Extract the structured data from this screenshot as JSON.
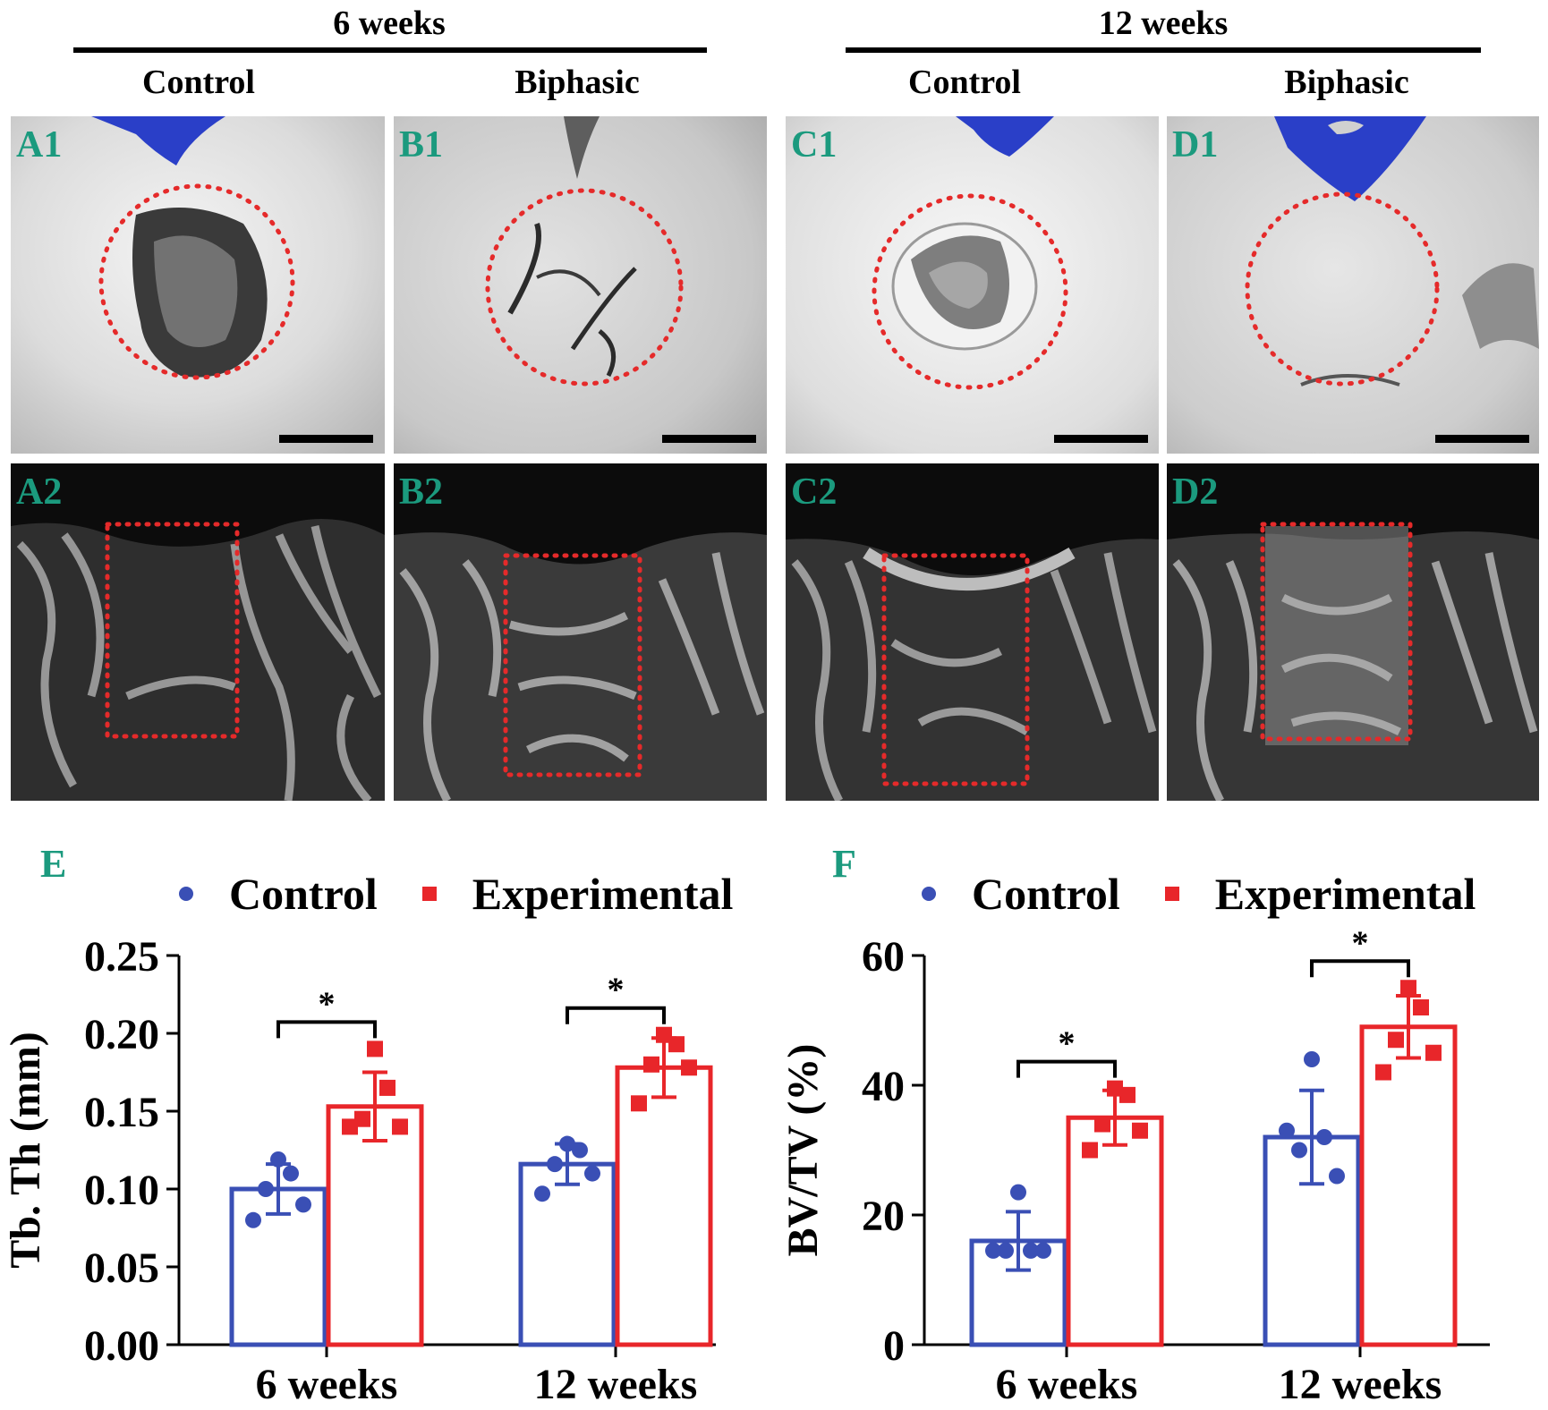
{
  "headers": {
    "group_6w": "6 weeks",
    "group_12w": "12 weeks",
    "col_a": "Control",
    "col_b": "Biphasic",
    "col_c": "Control",
    "col_d": "Biphasic"
  },
  "panel_labels": {
    "a1": "A1",
    "b1": "B1",
    "c1": "C1",
    "d1": "D1",
    "a2": "A2",
    "b2": "B2",
    "c2": "C2",
    "d2": "D2"
  },
  "colors": {
    "control": "#3a4fb5",
    "experimental": "#e8262a",
    "label_green": "#1b9a7e",
    "blue_region": "#2a3fc8"
  },
  "chart_data": [
    {
      "panel": "E",
      "type": "bar",
      "ylabel": "Tb. Th (mm)",
      "ylim": [
        0,
        0.25
      ],
      "yticks": [
        "0.00",
        "0.05",
        "0.10",
        "0.15",
        "0.20",
        "0.25"
      ],
      "categories": [
        "6 weeks",
        "12 weeks"
      ],
      "legend": [
        "Control",
        "Experimental"
      ],
      "series": [
        {
          "name": "Control",
          "values": [
            0.1,
            0.116
          ],
          "sd": [
            0.016,
            0.013
          ],
          "points": [
            [
              0.119,
              0.11,
              0.1,
              0.09,
              0.08
            ],
            [
              0.129,
              0.125,
              0.116,
              0.11,
              0.097
            ]
          ]
        },
        {
          "name": "Experimental",
          "values": [
            0.153,
            0.178
          ],
          "sd": [
            0.022,
            0.019
          ],
          "points": [
            [
              0.19,
              0.165,
              0.145,
              0.14,
              0.14
            ],
            [
              0.199,
              0.193,
              0.18,
              0.178,
              0.155
            ]
          ]
        }
      ],
      "significance": [
        {
          "category": "6 weeks",
          "label": "*"
        },
        {
          "category": "12 weeks",
          "label": "*"
        }
      ]
    },
    {
      "panel": "F",
      "type": "bar",
      "ylabel": "BV/TV (%)",
      "ylim": [
        0,
        60
      ],
      "yticks": [
        "0",
        "20",
        "40",
        "60"
      ],
      "categories": [
        "6 weeks",
        "12 weeks"
      ],
      "legend": [
        "Control",
        "Experimental"
      ],
      "series": [
        {
          "name": "Control",
          "values": [
            16,
            32
          ],
          "sd": [
            4.5,
            7.2
          ],
          "points": [
            [
              23.5,
              14.5,
              14.5,
              14.5,
              14.5
            ],
            [
              44,
              32,
              30,
              26,
              33
            ]
          ]
        },
        {
          "name": "Experimental",
          "values": [
            35,
            49
          ],
          "sd": [
            4.2,
            4.8
          ],
          "points": [
            [
              39.5,
              38.5,
              34,
              33,
              30
            ],
            [
              55,
              52,
              47,
              45,
              42
            ]
          ]
        }
      ],
      "significance": [
        {
          "category": "6 weeks",
          "label": "*"
        },
        {
          "category": "12 weeks",
          "label": "*"
        }
      ]
    }
  ]
}
